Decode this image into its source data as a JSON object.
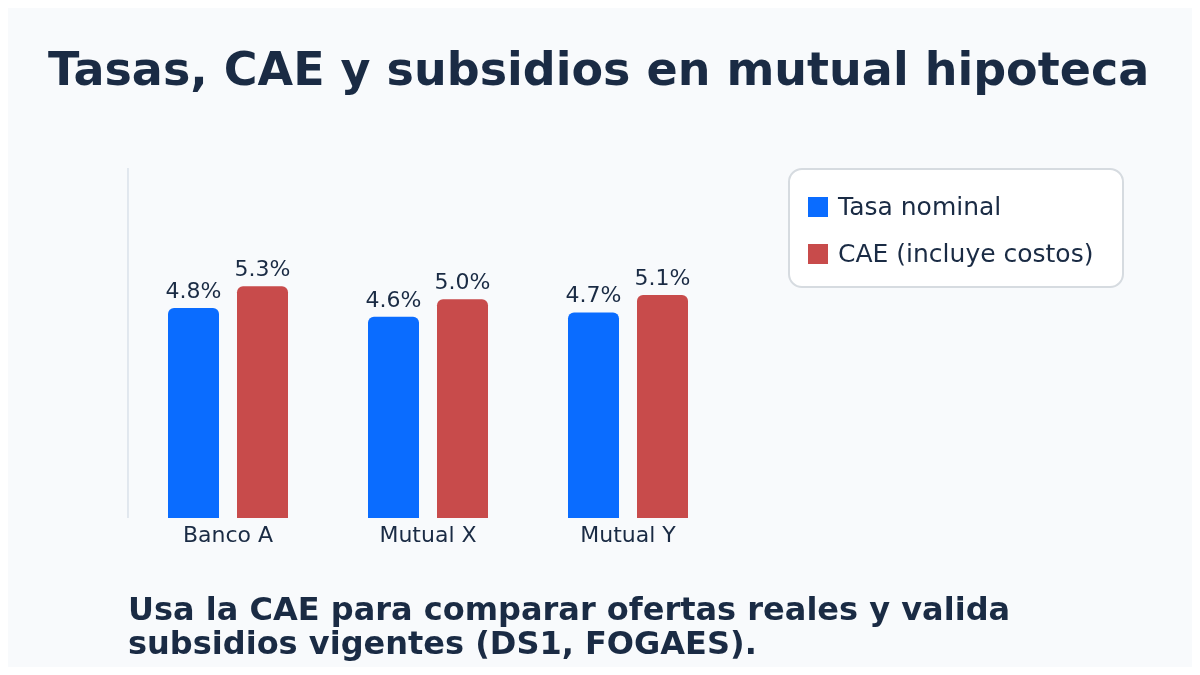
{
  "chart_data": {
    "type": "bar",
    "title": "Tasas, CAE y subsidios en mutual hipoteca",
    "categories": [
      "Banco A",
      "Mutual X",
      "Mutual Y"
    ],
    "series": [
      {
        "name": "Tasa nominal",
        "color": "#0a6cff",
        "values": [
          4.8,
          4.6,
          4.7
        ],
        "value_labels": [
          "4.8%",
          "4.6%",
          "4.7%"
        ]
      },
      {
        "name": "CAE (incluye costos)",
        "color": "#c84b4b",
        "values": [
          5.3,
          5.0,
          5.1
        ],
        "value_labels": [
          "5.3%",
          "5.0%",
          "5.1%"
        ]
      }
    ],
    "legend": "top right",
    "grid": false,
    "tick_labels": "x",
    "annotations": [
      "Usa la CAE para comparar ofertas reales y valida subsidios vigentes (DS1, FOGAES)."
    ]
  }
}
